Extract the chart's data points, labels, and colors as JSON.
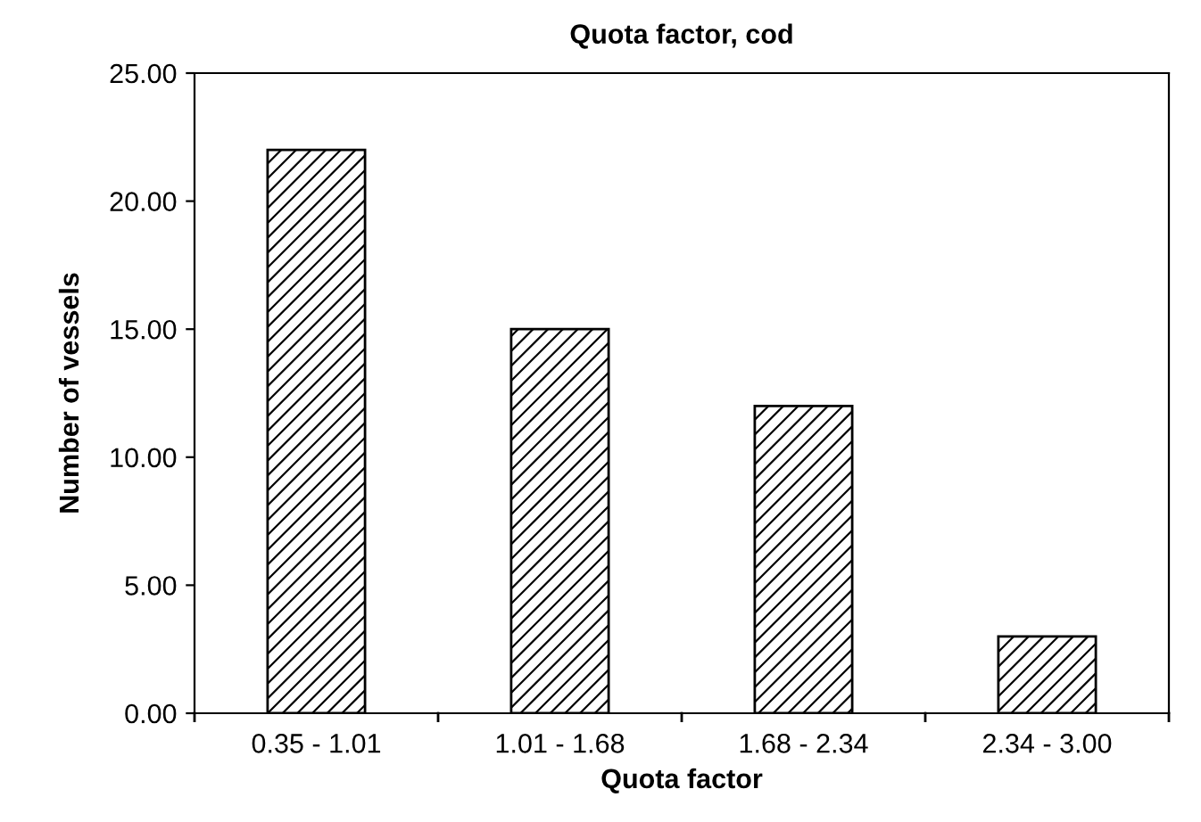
{
  "chart_data": {
    "type": "bar",
    "title": "Quota factor, cod",
    "xlabel": "Quota factor",
    "ylabel": "Number of vessels",
    "categories": [
      "0.35 - 1.01",
      "1.01 - 1.68",
      "1.68 - 2.34",
      "2.34 - 3.00"
    ],
    "values": [
      22,
      15,
      12,
      3
    ],
    "color": "#000000",
    "ylim": [
      0,
      25
    ],
    "yticks": [
      {
        "value": 0,
        "label": "0.00"
      },
      {
        "value": 5,
        "label": "5.00"
      },
      {
        "value": 10,
        "label": "10.00"
      },
      {
        "value": 15,
        "label": "15.00"
      },
      {
        "value": 20,
        "label": "20.00"
      },
      {
        "value": 25,
        "label": "25.00"
      }
    ],
    "grid": false,
    "legend": false
  }
}
